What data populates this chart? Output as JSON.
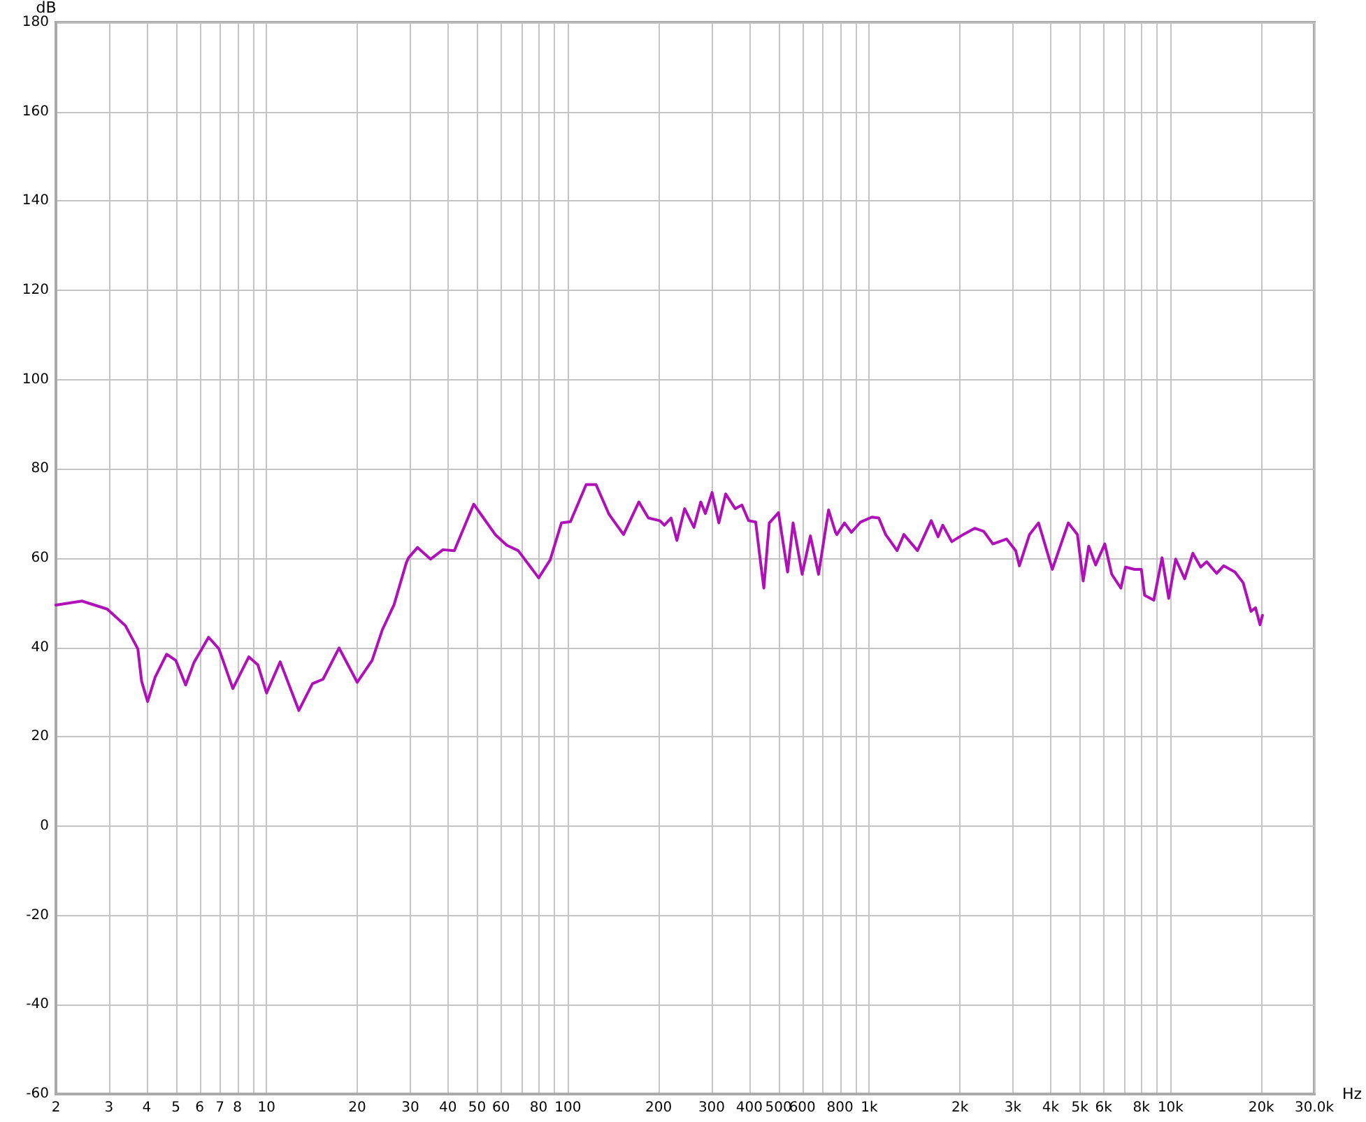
{
  "chart_data": {
    "type": "line",
    "ylabel": "dB",
    "xlabel": "Hz",
    "x": [
      2,
      2.44,
      2.96,
      3.4,
      3.74,
      3.85,
      4.03,
      4.27,
      4.66,
      5.0,
      5.39,
      5.74,
      6.42,
      6.95,
      7.73,
      8.73,
      9.36,
      10,
      11.1,
      12.8,
      14.2,
      15.4,
      17.4,
      20,
      22.4,
      24.2,
      26.5,
      29.1,
      29.6,
      31.7,
      35,
      38.5,
      42,
      48.7,
      57.4,
      62.7,
      68.4,
      80,
      87.3,
      95.2,
      102,
      115,
      124,
      137,
      153,
      172,
      185,
      202,
      209,
      220,
      230,
      244,
      262,
      276,
      286,
      301,
      317,
      334,
      359,
      378,
      398,
      420,
      435,
      447,
      466,
      500,
      536,
      559,
      599,
      638,
      679,
      733,
      773,
      781,
      828,
      873,
      936,
      1021,
      1076,
      1134,
      1237,
      1303,
      1446,
      1606,
      1693,
      1754,
      1879,
      2052,
      2239,
      2400,
      2573,
      2856,
      3063,
      3150,
      3404,
      3648,
      4053,
      4578,
      4909,
      5129,
      5352,
      5641,
      6051,
      6381,
      6841,
      7087,
      7597,
      8001,
      8203,
      8799,
      9372,
      9863,
      10400,
      11140,
      11860,
      12590,
      13180,
      14230,
      15000,
      16360,
      17420,
      18490,
      19140,
      19820,
      20180
    ],
    "series": [
      {
        "color": "#b010b8",
        "values": [
          49.5,
          50.4,
          48.6,
          44.9,
          39.7,
          32.4,
          27.9,
          33.4,
          38.5,
          37.1,
          31.6,
          36.6,
          42.3,
          39.7,
          30.8,
          37.9,
          36.1,
          29.8,
          36.8,
          25.9,
          31.9,
          32.9,
          39.9,
          32.2,
          37.1,
          43.9,
          49.6,
          59.0,
          60.1,
          62.4,
          59.8,
          61.9,
          61.7,
          72.1,
          65.3,
          62.9,
          61.7,
          55.6,
          59.6,
          67.9,
          68.2,
          76.5,
          76.5,
          69.8,
          65.3,
          72.6,
          69.0,
          68.4,
          67.4,
          69.0,
          64.0,
          71.1,
          66.9,
          72.6,
          70.0,
          74.7,
          67.9,
          74.4,
          71.1,
          71.9,
          68.4,
          68.1,
          59.6,
          53.3,
          67.9,
          70.2,
          56.9,
          67.9,
          56.4,
          65.0,
          56.4,
          70.8,
          65.8,
          65.3,
          67.9,
          65.8,
          68.1,
          69.2,
          69.0,
          65.3,
          61.7,
          65.3,
          61.7,
          68.4,
          64.8,
          67.4,
          63.7,
          65.3,
          66.7,
          66.0,
          63.2,
          64.3,
          61.7,
          58.3,
          65.3,
          67.9,
          57.5,
          67.9,
          65.3,
          54.9,
          62.7,
          58.5,
          63.2,
          56.4,
          53.3,
          58.0,
          57.5,
          57.5,
          51.7,
          50.6,
          60.1,
          51.0,
          59.8,
          55.4,
          61.1,
          58.0,
          59.2,
          56.6,
          58.3,
          56.9,
          54.5,
          48.1,
          48.9,
          45.1,
          47.2
        ]
      }
    ],
    "log": "x",
    "xlim": [
      2,
      30000
    ],
    "xticks": [
      2,
      3,
      4,
      5,
      6,
      7,
      8,
      {
        "value": 9,
        "label": null
      },
      10,
      20,
      30,
      40,
      50,
      60,
      {
        "value": 70,
        "label": null
      },
      80,
      {
        "value": 90,
        "label": null
      },
      100,
      200,
      300,
      400,
      500,
      600,
      {
        "value": 700,
        "label": null
      },
      800,
      {
        "value": 900,
        "label": null
      },
      {
        "value": 1000,
        "label": "1k"
      },
      {
        "value": 2000,
        "label": "2k"
      },
      {
        "value": 3000,
        "label": "3k"
      },
      {
        "value": 4000,
        "label": "4k"
      },
      {
        "value": 5000,
        "label": "5k"
      },
      {
        "value": 6000,
        "label": "6k"
      },
      {
        "value": 7000,
        "label": null
      },
      {
        "value": 8000,
        "label": "8k"
      },
      {
        "value": 9000,
        "label": null
      },
      {
        "value": 10000,
        "label": "10k"
      },
      {
        "value": 20000,
        "label": "20k"
      },
      {
        "value": 30000,
        "label": "30.0k"
      }
    ],
    "ylim": [
      -60,
      180
    ],
    "yticks": [
      -60,
      -40,
      -20,
      0,
      20,
      40,
      60,
      80,
      100,
      120,
      140,
      160,
      180
    ],
    "grid": true,
    "line_style": "solid",
    "marker": "none"
  }
}
